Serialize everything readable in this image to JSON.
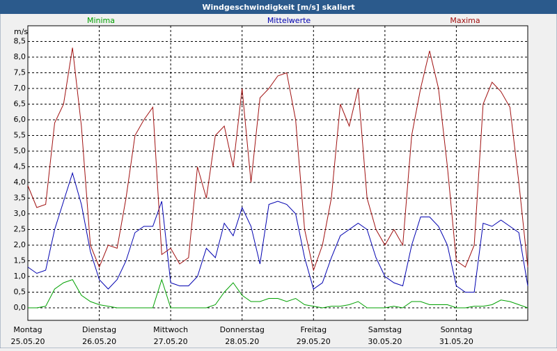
{
  "chart_data": {
    "type": "line",
    "title": "Windgeschwindigkeit [m/s] skaliert",
    "y_unit": "m/s",
    "x": [
      0,
      3,
      6,
      9,
      12,
      15,
      18,
      21,
      24,
      27,
      30,
      33,
      36,
      39,
      42,
      45,
      48,
      51,
      54,
      57,
      60,
      63,
      66,
      69,
      72,
      75,
      78,
      81,
      84,
      87,
      90,
      93,
      96,
      99,
      102,
      105,
      108,
      111,
      114,
      117,
      120,
      123,
      126,
      129,
      132,
      135,
      138,
      141,
      144,
      147,
      150,
      153,
      156,
      159,
      162,
      165,
      168
    ],
    "xlim": [
      0,
      168
    ],
    "xticks": [
      {
        "value": 0,
        "label": "Montag"
      },
      {
        "value": 24,
        "label": "Dienstag"
      },
      {
        "value": 48,
        "label": "Mittwoch"
      },
      {
        "value": 72,
        "label": "Donnerstag"
      },
      {
        "value": 96,
        "label": "Freitag"
      },
      {
        "value": 120,
        "label": "Samstag"
      },
      {
        "value": 144,
        "label": "Sonntag"
      }
    ],
    "xtick_dates": [
      "25.05.20",
      "26.05.20",
      "27.05.20",
      "28.05.20",
      "29.05.20",
      "30.05.20",
      "31.05.20"
    ],
    "ylim": [
      -0.4,
      9.0
    ],
    "yticks": [
      {
        "value": 0,
        "label": "0,0"
      },
      {
        "value": 0.5,
        "label": "0,5"
      },
      {
        "value": 1,
        "label": "1,0"
      },
      {
        "value": 1.5,
        "label": "1,5"
      },
      {
        "value": 2,
        "label": "2,0"
      },
      {
        "value": 2.5,
        "label": "2,5"
      },
      {
        "value": 3,
        "label": "3,0"
      },
      {
        "value": 3.5,
        "label": "3,5"
      },
      {
        "value": 4,
        "label": "4,0"
      },
      {
        "value": 4.5,
        "label": "4,5"
      },
      {
        "value": 5,
        "label": "5,0"
      },
      {
        "value": 5.5,
        "label": "5,5"
      },
      {
        "value": 6,
        "label": "6,0"
      },
      {
        "value": 6.5,
        "label": "6,5"
      },
      {
        "value": 7,
        "label": "7,0"
      },
      {
        "value": 7.5,
        "label": "7,5"
      },
      {
        "value": 8,
        "label": "8,0"
      },
      {
        "value": 8.5,
        "label": "8,5"
      }
    ],
    "grid": true,
    "series": [
      {
        "name": "Minima",
        "color": "#00a000",
        "values": [
          0,
          0,
          0.05,
          0.6,
          0.8,
          0.9,
          0.4,
          0.2,
          0.1,
          0.05,
          0,
          0,
          0,
          0,
          0,
          0.9,
          0,
          0,
          0,
          0,
          0,
          0.1,
          0.5,
          0.8,
          0.4,
          0.2,
          0.2,
          0.3,
          0.3,
          0.2,
          0.3,
          0.1,
          0.05,
          0,
          0.05,
          0.05,
          0.1,
          0.2,
          0,
          0,
          0,
          0.05,
          0,
          0.2,
          0.2,
          0.1,
          0.1,
          0.1,
          0,
          0,
          0.05,
          0.05,
          0.1,
          0.25,
          0.2,
          0.1,
          0
        ]
      },
      {
        "name": "Mittelwerte",
        "color": "#0000b0",
        "values": [
          1.3,
          1.1,
          1.2,
          2.5,
          3.4,
          4.3,
          3.3,
          1.8,
          0.9,
          0.6,
          0.9,
          1.5,
          2.4,
          2.6,
          2.6,
          3.4,
          0.8,
          0.7,
          0.7,
          1.0,
          1.9,
          1.6,
          2.7,
          2.3,
          3.2,
          2.6,
          1.4,
          3.3,
          3.4,
          3.3,
          3.0,
          1.6,
          0.6,
          0.8,
          1.6,
          2.3,
          2.5,
          2.7,
          2.5,
          1.6,
          1.0,
          0.8,
          0.7,
          2.0,
          2.9,
          2.9,
          2.6,
          2.0,
          0.7,
          0.5,
          0.5,
          2.7,
          2.6,
          2.8,
          2.6,
          2.4,
          0.7
        ]
      },
      {
        "name": "Maxima",
        "color": "#a01010",
        "values": [
          3.9,
          3.2,
          3.3,
          5.9,
          6.5,
          8.3,
          5.8,
          2.0,
          1.3,
          2.0,
          1.9,
          3.5,
          5.5,
          6.0,
          6.4,
          1.7,
          1.9,
          1.4,
          1.6,
          4.5,
          3.5,
          5.5,
          5.8,
          4.5,
          7.0,
          4.0,
          6.7,
          7.0,
          7.4,
          7.5,
          6.0,
          2.5,
          1.2,
          2.0,
          3.5,
          6.5,
          5.8,
          7.0,
          3.5,
          2.5,
          2.0,
          2.5,
          2.0,
          5.5,
          7.0,
          8.2,
          7.0,
          4.5,
          1.5,
          1.3,
          2.0,
          6.5,
          7.2,
          6.9,
          6.4,
          4.0,
          1.3
        ]
      }
    ]
  }
}
